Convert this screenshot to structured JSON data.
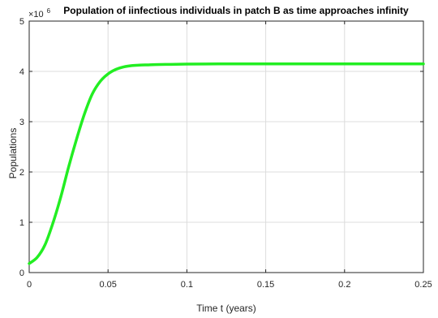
{
  "chart_data": {
    "type": "line",
    "title": "Population of iinfectious individuals in patch B as time approaches infinity",
    "xlabel": "Time t (years)",
    "ylabel": "Populations",
    "xlim": [
      0,
      0.25
    ],
    "ylim": [
      0,
      5
    ],
    "y_scale_exponent_base": "×10",
    "y_scale_exponent_power": "6",
    "x_ticks": [
      "0",
      "0.05",
      "0.1",
      "0.15",
      "0.2",
      "0.25"
    ],
    "y_ticks": [
      "0",
      "1",
      "2",
      "3",
      "4",
      "5"
    ],
    "grid": true,
    "line_color": "#22ee22",
    "series": [
      {
        "x": [
          0,
          0.005,
          0.01,
          0.015,
          0.02,
          0.025,
          0.03,
          0.035,
          0.04,
          0.045,
          0.05,
          0.055,
          0.06,
          0.065,
          0.07,
          0.075,
          0.08,
          0.09,
          0.1,
          0.12,
          0.15,
          0.2,
          0.25
        ],
        "values": [
          0.18,
          0.3,
          0.55,
          0.98,
          1.5,
          2.1,
          2.65,
          3.15,
          3.55,
          3.8,
          3.95,
          4.04,
          4.09,
          4.115,
          4.125,
          4.13,
          4.135,
          4.14,
          4.145,
          4.15,
          4.15,
          4.15,
          4.15
        ]
      }
    ]
  }
}
